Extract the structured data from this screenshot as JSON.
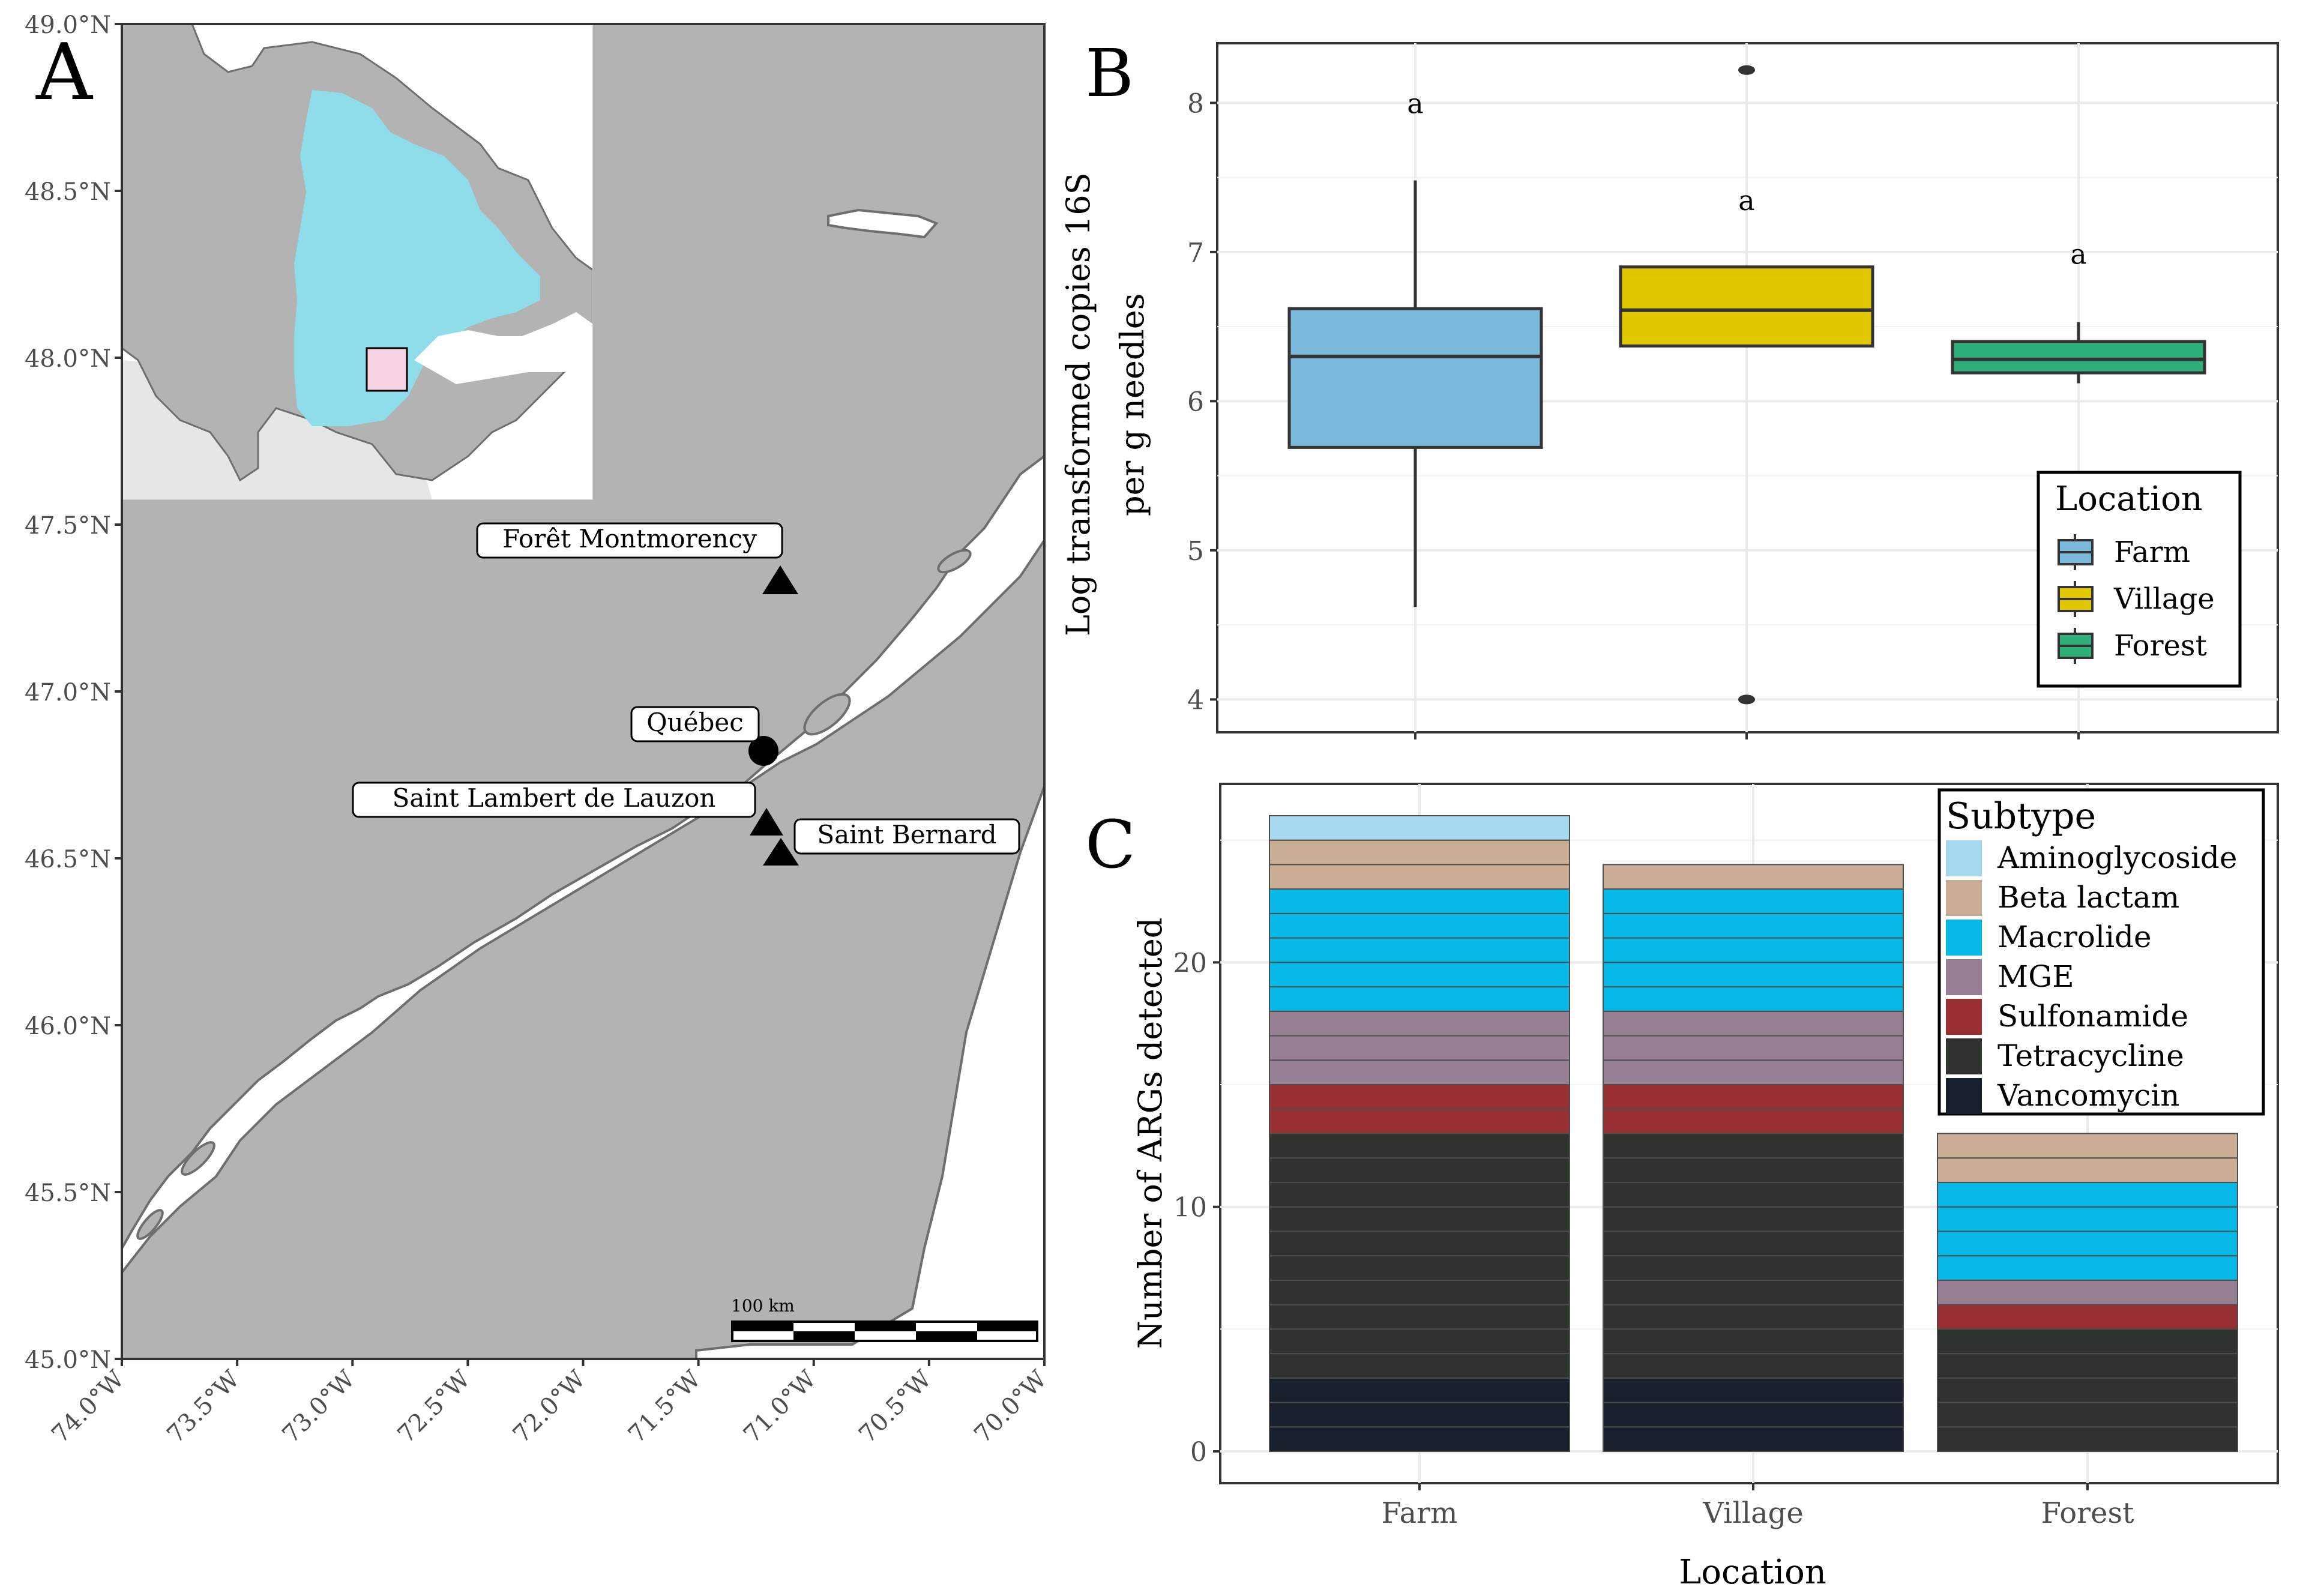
{
  "chart_data": [
    {
      "panel": "A",
      "type": "map",
      "x_ticks": [
        "74.0°W",
        "73.5°W",
        "73.0°W",
        "72.5°W",
        "72.0°W",
        "71.5°W",
        "71.0°W",
        "70.5°W",
        "70.0°W"
      ],
      "y_ticks": [
        "49.0°N",
        "48.5°N",
        "48.0°N",
        "47.5°N",
        "47.0°N",
        "46.5°N",
        "46.0°N",
        "45.5°N",
        "45.0°N"
      ],
      "xlim": [
        -74.0,
        -70.0
      ],
      "ylim": [
        45.0,
        49.0
      ],
      "sites": [
        {
          "name": "Forêt Montmorency",
          "lon": -71.12,
          "lat": 47.33,
          "marker": "triangle"
        },
        {
          "name": "Québec",
          "lon": -71.21,
          "lat": 46.82,
          "marker": "circle"
        },
        {
          "name": "Saint-Lambert-de-Lauzon",
          "lon": -71.2,
          "lat": 46.59,
          "marker": "triangle"
        },
        {
          "name": "Saint-Bernard",
          "lon": -71.13,
          "lat": 46.51,
          "marker": "triangle"
        }
      ],
      "site_labels": [
        "Forêt Montmorency",
        "Québec",
        "Saint Lambert de Lauzon",
        "Saint Bernard"
      ],
      "scale_bar": "100 km",
      "colors": {
        "land": "#b3b3b3",
        "water": "#ffffff",
        "coast": "#6e6e6e",
        "quebec": "#8fdcea",
        "other_land": "#e6e6e6",
        "inset_box": "#f7d4e1"
      }
    },
    {
      "panel": "B",
      "type": "box",
      "categories": [
        "Farm",
        "Village",
        "Forest"
      ],
      "boxes": [
        {
          "name": "Farm",
          "min": 4.62,
          "q1": 5.69,
          "median": 6.3,
          "q3": 6.62,
          "max": 7.48,
          "outliers": [],
          "letter": "a",
          "letter_y": 7.98,
          "color": "#7ab8dc"
        },
        {
          "name": "Village",
          "min": 6.37,
          "q1": 6.37,
          "median": 6.61,
          "q3": 6.9,
          "max": 6.9,
          "outliers": [
            8.22,
            4.0
          ],
          "letter": "a",
          "letter_y": 7.33,
          "color": "#e3c800"
        },
        {
          "name": "Forest",
          "min": 6.12,
          "q1": 6.19,
          "median": 6.28,
          "q3": 6.4,
          "max": 6.53,
          "outliers": [],
          "letter": "a",
          "letter_y": 6.97,
          "color": "#2fb07a"
        }
      ],
      "ylabel": "Log transformed copies 16S per g needles",
      "y_ticks": [
        4,
        5,
        6,
        7,
        8
      ],
      "ylim": [
        3.78,
        8.4
      ],
      "legend_title": "Location",
      "legend_labels": [
        "Farm",
        "Village",
        "Forest"
      ],
      "legend_position": "bottom-right"
    },
    {
      "panel": "C",
      "type": "bar",
      "stacked": true,
      "categories": [
        "Farm",
        "Village",
        "Forest"
      ],
      "series": [
        {
          "name": "Vancomycin",
          "color": "#17202b",
          "values": [
            3,
            3,
            0
          ]
        },
        {
          "name": "Tetracycline",
          "color": "#2e332e",
          "values": [
            10,
            10,
            5
          ]
        },
        {
          "name": "Sulfonamide",
          "color": "#972f33",
          "values": [
            2,
            2,
            1
          ]
        },
        {
          "name": "MGE",
          "color": "#967f93",
          "values": [
            3,
            3,
            1
          ]
        },
        {
          "name": "Macrolide",
          "color": "#05b8e8",
          "values": [
            5,
            5,
            4
          ]
        },
        {
          "name": "Beta-lactam",
          "color": "#c9ad94",
          "values": [
            2,
            1,
            2
          ]
        },
        {
          "name": "Aminoglycoside",
          "color": "#a6d9f0",
          "values": [
            1,
            0,
            0
          ]
        }
      ],
      "xlabel": "Location",
      "ylabel": "Number of ARGs detected",
      "y_ticks": [
        0,
        10,
        20
      ],
      "ylim": [
        -1.3,
        27.3
      ],
      "legend_title": "Subtype",
      "legend_labels": [
        "Aminoglycoside",
        "Beta lactam",
        "Macrolide",
        "MGE",
        "Sulfonamide",
        "Tetracycline",
        "Vancomycin"
      ],
      "legend_position": "top-right"
    }
  ],
  "panel_letters": [
    "A",
    "B",
    "C"
  ]
}
